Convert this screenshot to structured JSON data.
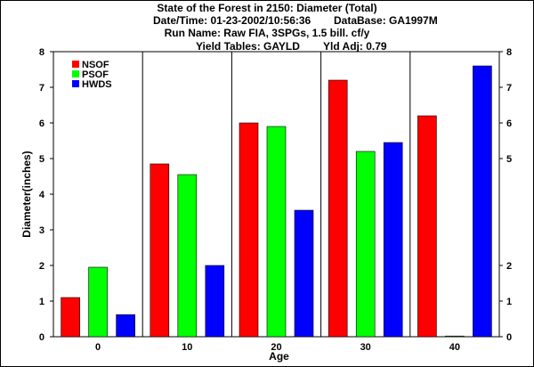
{
  "chart_data": {
    "type": "bar",
    "title": "State of the Forest in 2150: Diameter (Total)",
    "subtitle_datetime": "Date/Time: 01-23-2002/10:56:36",
    "subtitle_database": "DataBase: GA1997M",
    "subtitle_run": "Run Name: Raw FIA, 3SPGs, 1.5 bill. cf/y",
    "subtitle_yield": "Yield Tables: GAYLD",
    "subtitle_yldadj": "Yld Adj: 0.79",
    "xlabel": "Age",
    "ylabel": "Diameter(inches)",
    "ylim": [
      0,
      8
    ],
    "yticks_left": [
      "0",
      "1",
      "2",
      "3",
      "4",
      "5",
      "6",
      "7",
      "8"
    ],
    "yticks_right": [
      "0",
      "1",
      "2",
      "5",
      "6",
      "7",
      "8"
    ],
    "categories": [
      "0",
      "10",
      "20",
      "30",
      "40"
    ],
    "series": [
      {
        "name": "NSOF",
        "color": "#ff0000",
        "values": [
          1.1,
          4.85,
          6.0,
          7.2,
          6.2
        ]
      },
      {
        "name": "PSOF",
        "color": "#00ff00",
        "values": [
          1.95,
          4.55,
          5.9,
          5.2,
          0.0
        ]
      },
      {
        "name": "HWDS",
        "color": "#0000ff",
        "values": [
          0.62,
          2.0,
          3.55,
          5.45,
          7.6
        ]
      }
    ],
    "legend": "top-left",
    "grid": "vertical"
  }
}
